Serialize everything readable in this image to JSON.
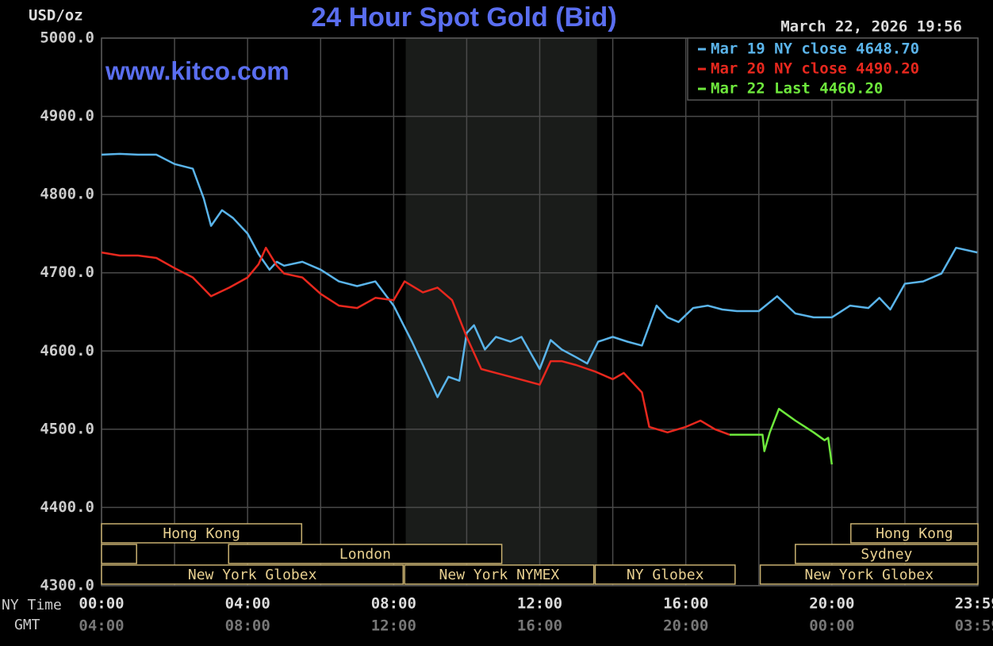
{
  "chart_data": {
    "type": "line",
    "title": "24 Hour Spot Gold (Bid)",
    "watermark": "www.kitco.com",
    "y_label": "USD/oz",
    "timestamp": "March 22, 2026 19:56",
    "x_axis_labels": [
      "NY Time",
      "GMT"
    ],
    "xlim": [
      0,
      24
    ],
    "ylim": [
      4300,
      5000
    ],
    "yticks": [
      {
        "value": 5000,
        "label": "5000.0"
      },
      {
        "value": 4900,
        "label": "4900.0"
      },
      {
        "value": 4800,
        "label": "4800.0"
      },
      {
        "value": 4700,
        "label": "4700.0"
      },
      {
        "value": 4600,
        "label": "4600.0"
      },
      {
        "value": 4500,
        "label": "4500.0"
      },
      {
        "value": 4400,
        "label": "4400.0"
      },
      {
        "value": 4300,
        "label": "4300.0"
      }
    ],
    "xticks": [
      {
        "value": 0,
        "label": "00:00"
      },
      {
        "value": 4,
        "label": "04:00"
      },
      {
        "value": 8,
        "label": "08:00"
      },
      {
        "value": 12,
        "label": "12:00"
      },
      {
        "value": 16,
        "label": "16:00"
      },
      {
        "value": 20,
        "label": "20:00"
      },
      {
        "value": 23.983,
        "label": "23:59"
      }
    ],
    "gmt_ticks": [
      {
        "value": 0,
        "label": "04:00"
      },
      {
        "value": 4,
        "label": "08:00"
      },
      {
        "value": 8,
        "label": "12:00"
      },
      {
        "value": 12,
        "label": "16:00"
      },
      {
        "value": 16,
        "label": "20:00"
      },
      {
        "value": 20,
        "label": "00:00"
      },
      {
        "value": 23.983,
        "label": "03:59"
      }
    ],
    "minor_xticks": [
      2,
      6,
      10,
      14,
      18,
      22
    ],
    "grid": true,
    "shaded": [
      8.33,
      13.57
    ],
    "sessions": [
      {
        "label": "Hong Kong",
        "start": 0,
        "end": 5.48,
        "row": 0
      },
      {
        "label": null,
        "start": 0,
        "end": 0.96,
        "row": 1
      },
      {
        "label": "London",
        "start": 3.48,
        "end": 10.96,
        "row": 1
      },
      {
        "label": "New York Globex",
        "start": 0,
        "end": 8.26,
        "row": 2
      },
      {
        "label": "New York NYMEX",
        "start": 8.3,
        "end": 13.48,
        "row": 2
      },
      {
        "label": "NY Globex",
        "start": 13.52,
        "end": 17.35,
        "row": 2
      },
      {
        "label": "New York Globex",
        "start": 18.04,
        "end": 24,
        "row": 2
      },
      {
        "label": "Hong Kong",
        "start": 20.52,
        "end": 24,
        "row": 0
      },
      {
        "label": "Sydney",
        "start": 19,
        "end": 24,
        "row": 1
      }
    ],
    "series": [
      {
        "name": "Mar 19 NY close 4648.70",
        "color": "#5ab4ea",
        "x": [
          0,
          0.5,
          1,
          1.5,
          2,
          2.5,
          2.8,
          3,
          3.3,
          3.6,
          4,
          4.3,
          4.6,
          4.8,
          5,
          5.5,
          6,
          6.5,
          7,
          7.5,
          8,
          8.5,
          8.8,
          9.2,
          9.5,
          9.8,
          10,
          10.2,
          10.5,
          10.8,
          11.2,
          11.5,
          12,
          12.3,
          12.6,
          13,
          13.3,
          13.6,
          14,
          14.4,
          14.8,
          15.2,
          15.5,
          15.8,
          16.2,
          16.6,
          17,
          17.4,
          18,
          18.5,
          19,
          19.5,
          20,
          20.5,
          21,
          21.3,
          21.6,
          22,
          22.5,
          23,
          23.4,
          23.983
        ],
        "values": [
          4851,
          4852,
          4851,
          4851,
          4839,
          4833,
          4795,
          4760,
          4780,
          4770,
          4750,
          4724,
          4704,
          4714,
          4709,
          4714,
          4704,
          4689,
          4683,
          4689,
          4658,
          4612,
          4582,
          4541,
          4567,
          4562,
          4623,
          4633,
          4602,
          4618,
          4612,
          4618,
          4577,
          4614,
          4602,
          4592,
          4584,
          4612,
          4618,
          4612,
          4607,
          4658,
          4643,
          4637,
          4655,
          4658,
          4653,
          4651,
          4651,
          4670,
          4648,
          4643,
          4643,
          4658,
          4655,
          4668,
          4653,
          4686,
          4689,
          4699,
          4732,
          4726
        ]
      },
      {
        "name": "Mar 20 NY close 4490.20",
        "color": "#e8281e",
        "x": [
          0,
          0.5,
          1,
          1.5,
          2,
          2.5,
          3,
          3.5,
          4,
          4.3,
          4.5,
          4.8,
          5,
          5.5,
          6,
          6.5,
          7,
          7.5,
          8,
          8.3,
          8.8,
          9.2,
          9.6,
          10,
          10.4,
          10.8,
          11.2,
          11.6,
          12,
          12.3,
          12.6,
          13,
          13.5,
          14,
          14.3,
          14.8,
          15,
          15.5,
          16,
          16.4,
          16.8,
          17.2
        ],
        "values": [
          4726,
          4722,
          4722,
          4719,
          4706,
          4694,
          4670,
          4681,
          4694,
          4711,
          4732,
          4709,
          4699,
          4694,
          4673,
          4658,
          4655,
          4668,
          4665,
          4689,
          4675,
          4681,
          4665,
          4618,
          4577,
          4572,
          4567,
          4562,
          4557,
          4587,
          4587,
          4582,
          4574,
          4564,
          4572,
          4547,
          4503,
          4496,
          4503,
          4511,
          4500,
          4493
        ]
      },
      {
        "name": "Mar 22 Last 4460.20",
        "color": "#6ee83c",
        "x": [
          17.2,
          18.1,
          18.15,
          18.3,
          18.55,
          19,
          19.5,
          19.8,
          19.9,
          20
        ],
        "values": [
          4493,
          4493,
          4472,
          4496,
          4526,
          4511,
          4496,
          4486,
          4489,
          4455
        ]
      }
    ]
  }
}
